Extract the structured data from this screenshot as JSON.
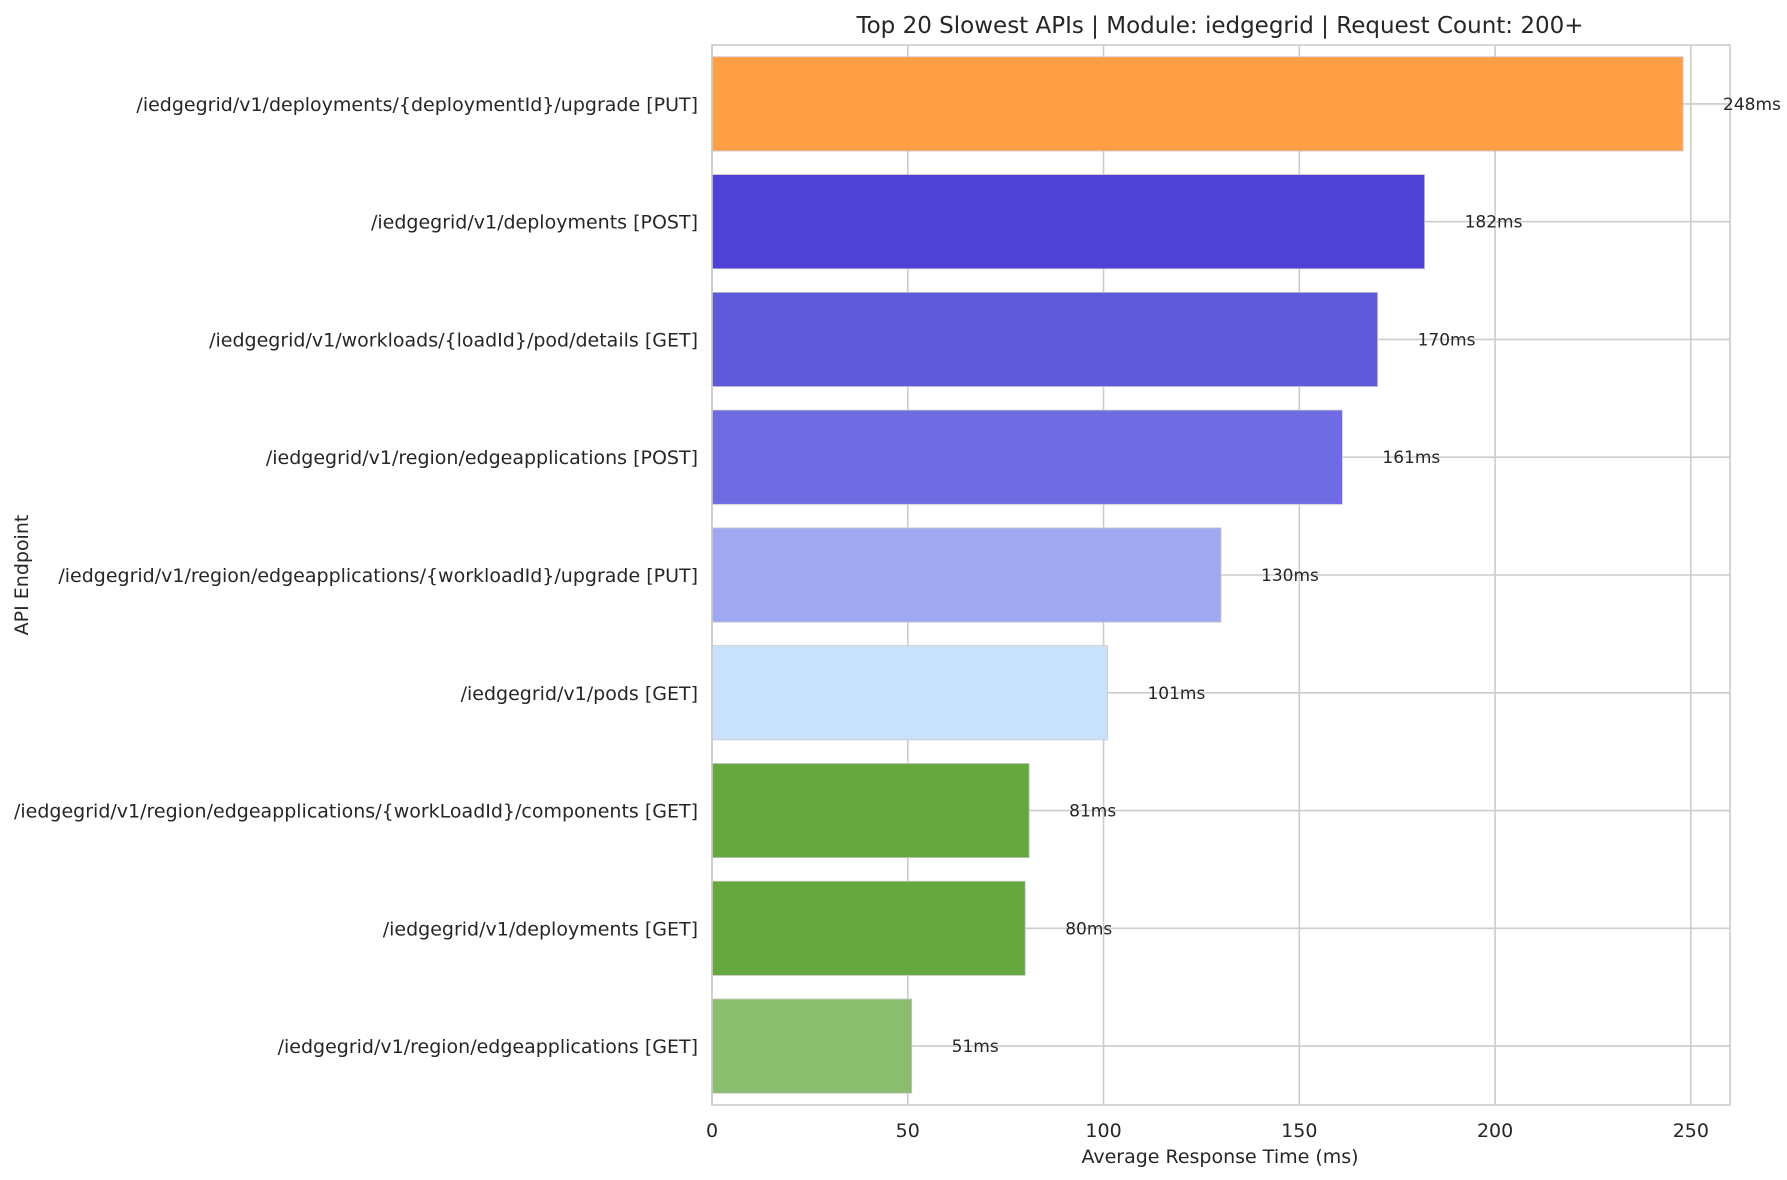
{
  "chart_data": {
    "type": "bar",
    "orientation": "horizontal",
    "title": "Top 20 Slowest APIs | Module: iedgegrid | Request Count: 200+",
    "xlabel": "Average Response Time (ms)",
    "ylabel": "API Endpoint",
    "xlim": [
      0,
      260
    ],
    "xticks": [
      0,
      50,
      100,
      150,
      200,
      250
    ],
    "grid": true,
    "value_suffix": "ms",
    "categories": [
      "/iedgegrid/v1/deployments/{deploymentId}/upgrade [PUT]",
      "/iedgegrid/v1/deployments [POST]",
      "/iedgegrid/v1/workloads/{loadId}/pod/details [GET]",
      "/iedgegrid/v1/region/edgeapplications [POST]",
      "/iedgegrid/v1/region/edgeapplications/{workloadId}/upgrade [PUT]",
      "/iedgegrid/v1/pods [GET]",
      "/iedgegrid/v1/region/edgeapplications/{workLoadId}/components [GET]",
      "/iedgegrid/v1/deployments [GET]",
      "/iedgegrid/v1/region/edgeapplications [GET]"
    ],
    "values": [
      248,
      182,
      170,
      161,
      130,
      101,
      81,
      80,
      51
    ],
    "data_labels": [
      "248ms",
      "182ms",
      "170ms",
      "161ms",
      "130ms",
      "101ms",
      "81ms",
      "80ms",
      "51ms"
    ],
    "colors": [
      "#ff9f45",
      "#4f40d6",
      "#5f59dc",
      "#6f6be2",
      "#9fa8f0",
      "#c8e2fc",
      "#66a83e",
      "#66a83e",
      "#8bbd6e"
    ]
  }
}
